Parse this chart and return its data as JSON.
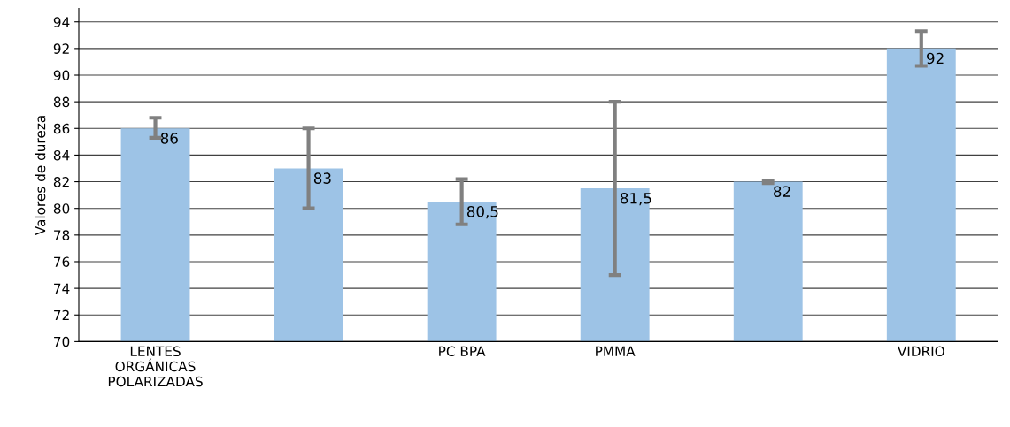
{
  "chart_data": {
    "type": "bar",
    "ylabel": "Valores de dureza",
    "categories": [
      "LENTES\nORGÁNICAS\nPOLARIZADAS",
      null,
      "PC BPA",
      "PMMA",
      null,
      "VIDRIO"
    ],
    "values": [
      86,
      83,
      80.5,
      81.5,
      82,
      92
    ],
    "value_labels": [
      "86",
      "83",
      "80,5",
      "81,5",
      "82",
      "92"
    ],
    "errors": [
      [
        85.3,
        86.8
      ],
      [
        80,
        86
      ],
      [
        78.8,
        82.2
      ],
      [
        75,
        88
      ],
      [
        81.9,
        82.1
      ],
      [
        90.7,
        93.3
      ]
    ],
    "color": "#9dc3e6",
    "ylim": [
      70,
      95
    ],
    "yticks": [
      70,
      72,
      74,
      76,
      78,
      80,
      82,
      84,
      86,
      88,
      90,
      92,
      94
    ],
    "grid": "y",
    "legend": false
  }
}
